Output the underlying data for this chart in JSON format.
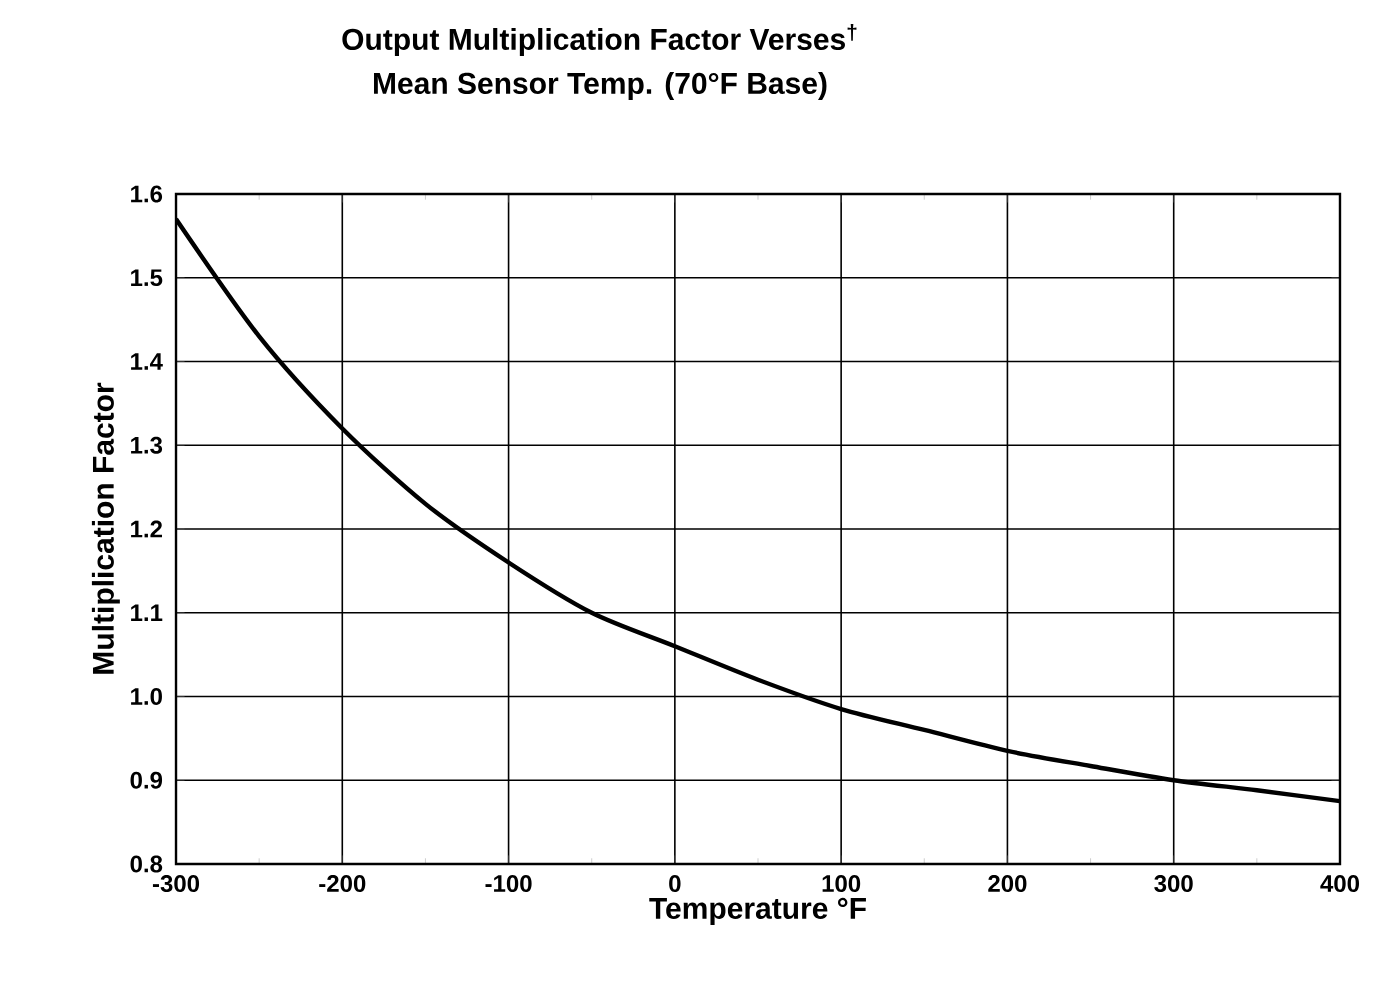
{
  "chart_data": {
    "type": "line",
    "title": "Output Multiplication Factor Verses$^{†}$",
    "subtitle": "Mean Sensor Temp. (70°F Base)",
    "xlabel": "Temperature °F",
    "ylabel": "Multiplication Factor",
    "x": [
      -300,
      -250,
      -200,
      -150,
      -100,
      -50,
      0,
      50,
      100,
      150,
      200,
      250,
      300,
      350,
      400
    ],
    "series": [
      {
        "color": "#000000",
        "values": [
          1.57,
          1.43,
          1.32,
          1.23,
          1.16,
          1.1,
          1.06,
          1.02,
          0.985,
          0.96,
          0.935,
          0.917,
          0.9,
          0.888,
          0.875
        ]
      }
    ],
    "xlim": [
      -300,
      400
    ],
    "xticks": [
      -300,
      -200,
      -100,
      0,
      100,
      200,
      300,
      400
    ],
    "ylim": [
      0.8,
      1.6
    ],
    "yticks": [
      {
        "value": 0.8,
        "label": "0.8"
      },
      {
        "value": 0.9,
        "label": "0.9"
      },
      {
        "value": 1.0,
        "label": "1.0"
      },
      {
        "value": 1.1,
        "label": "1.1"
      },
      {
        "value": 1.2,
        "label": "1.2"
      },
      {
        "value": 1.3,
        "label": "1.3"
      },
      {
        "value": 1.4,
        "label": "1.4"
      },
      {
        "value": 1.5,
        "label": "1.5"
      },
      {
        "value": 1.6,
        "label": "1.6"
      }
    ],
    "grid": true,
    "marker": "none",
    "line_style": "solid"
  }
}
